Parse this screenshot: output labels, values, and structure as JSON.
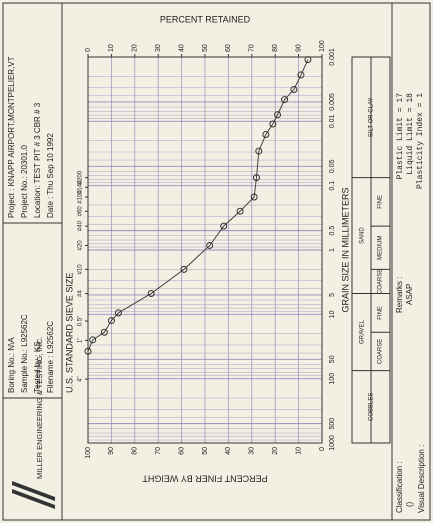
{
  "header": {
    "company": "MILLER ENGINEERING & TESTING, INC.",
    "boring": [
      "Boring No.: N\\A",
      "Sample No.: L92562C",
      "Tested by : KS",
      "Filename : L92562C"
    ],
    "project": [
      "Project : KNAPP AIRPORT,MONTPELIER,VT",
      "Project No.: 20301.0",
      "Location: TEST PIT # 3 CBR # 3",
      "Date : Thu Sep 10 1992"
    ]
  },
  "chart_data": {
    "type": "line",
    "sieve_title": "U.S. STANDARD SIEVE SIZE",
    "xlabel": "GRAIN SIZE IN MILLIMETERS",
    "ylabel": "PERCENT FINER BY WEIGHT",
    "y2label": "PERCENT RETAINED",
    "log_x": true,
    "grid": true,
    "color": "#333333",
    "grid_color": "#9a8cc0",
    "x": [
      37.5,
      25,
      19,
      12.5,
      9.5,
      4.75,
      2,
      0.85,
      0.425,
      0.25,
      0.15,
      0.075,
      0.029,
      0.016,
      0.011,
      0.0079,
      0.0046,
      0.0032,
      0.0019,
      0.0011
    ],
    "values": [
      100,
      98,
      93,
      90,
      87,
      73,
      59,
      48,
      42,
      35,
      29,
      28,
      27,
      24,
      21,
      19,
      16,
      12,
      9,
      6
    ],
    "xlim": [
      1000,
      0.001
    ],
    "xticks": [
      1000,
      500,
      100,
      50,
      10,
      5,
      1,
      0.5,
      0.1,
      0.05,
      0.01,
      0.005,
      0.001
    ],
    "ylim": [
      0,
      100
    ],
    "yticks": [
      0,
      10,
      20,
      30,
      40,
      50,
      60,
      70,
      80,
      90,
      100
    ],
    "y2lim": [
      100,
      0
    ],
    "y2ticks": [
      0,
      10,
      20,
      30,
      40,
      50,
      60,
      70,
      80,
      90,
      100
    ],
    "sieve_ticks": [
      {
        "value": 101.6,
        "label": "4\""
      },
      {
        "value": 25.4,
        "label": "1\""
      },
      {
        "value": 12.7,
        "label": "0.5\""
      },
      {
        "value": 4.75,
        "label": "#4"
      },
      {
        "value": 2,
        "label": "#10"
      },
      {
        "value": 0.85,
        "label": "#20"
      },
      {
        "value": 0.425,
        "label": "#40"
      },
      {
        "value": 0.25,
        "label": "#60"
      },
      {
        "value": 0.15,
        "label": "#100"
      },
      {
        "value": 0.106,
        "label": "#140"
      },
      {
        "value": 0.075,
        "label": "#200"
      }
    ],
    "gradation_bounds": [
      75,
      19,
      4.75,
      2,
      0.425,
      0.075
    ]
  },
  "gradation": {
    "cobbles": "COBBLES",
    "gravel": "GRAVEL",
    "sand": "SAND",
    "silt": "SILT OR CLAY",
    "gravel_parts": [
      "COARSE",
      "FINE"
    ],
    "sand_parts": [
      "COARSE",
      "MEDIUM",
      "FINE"
    ]
  },
  "footer": {
    "remarks_label": "Remarks :",
    "remarks": "ASAP",
    "limits": [
      "Plastic Limit = 17",
      "Liquid Limit = 18",
      "Plasticity Index = 1"
    ],
    "classification_label": "Classification :",
    "classification": "()",
    "visual_label": "Visual Description :"
  }
}
